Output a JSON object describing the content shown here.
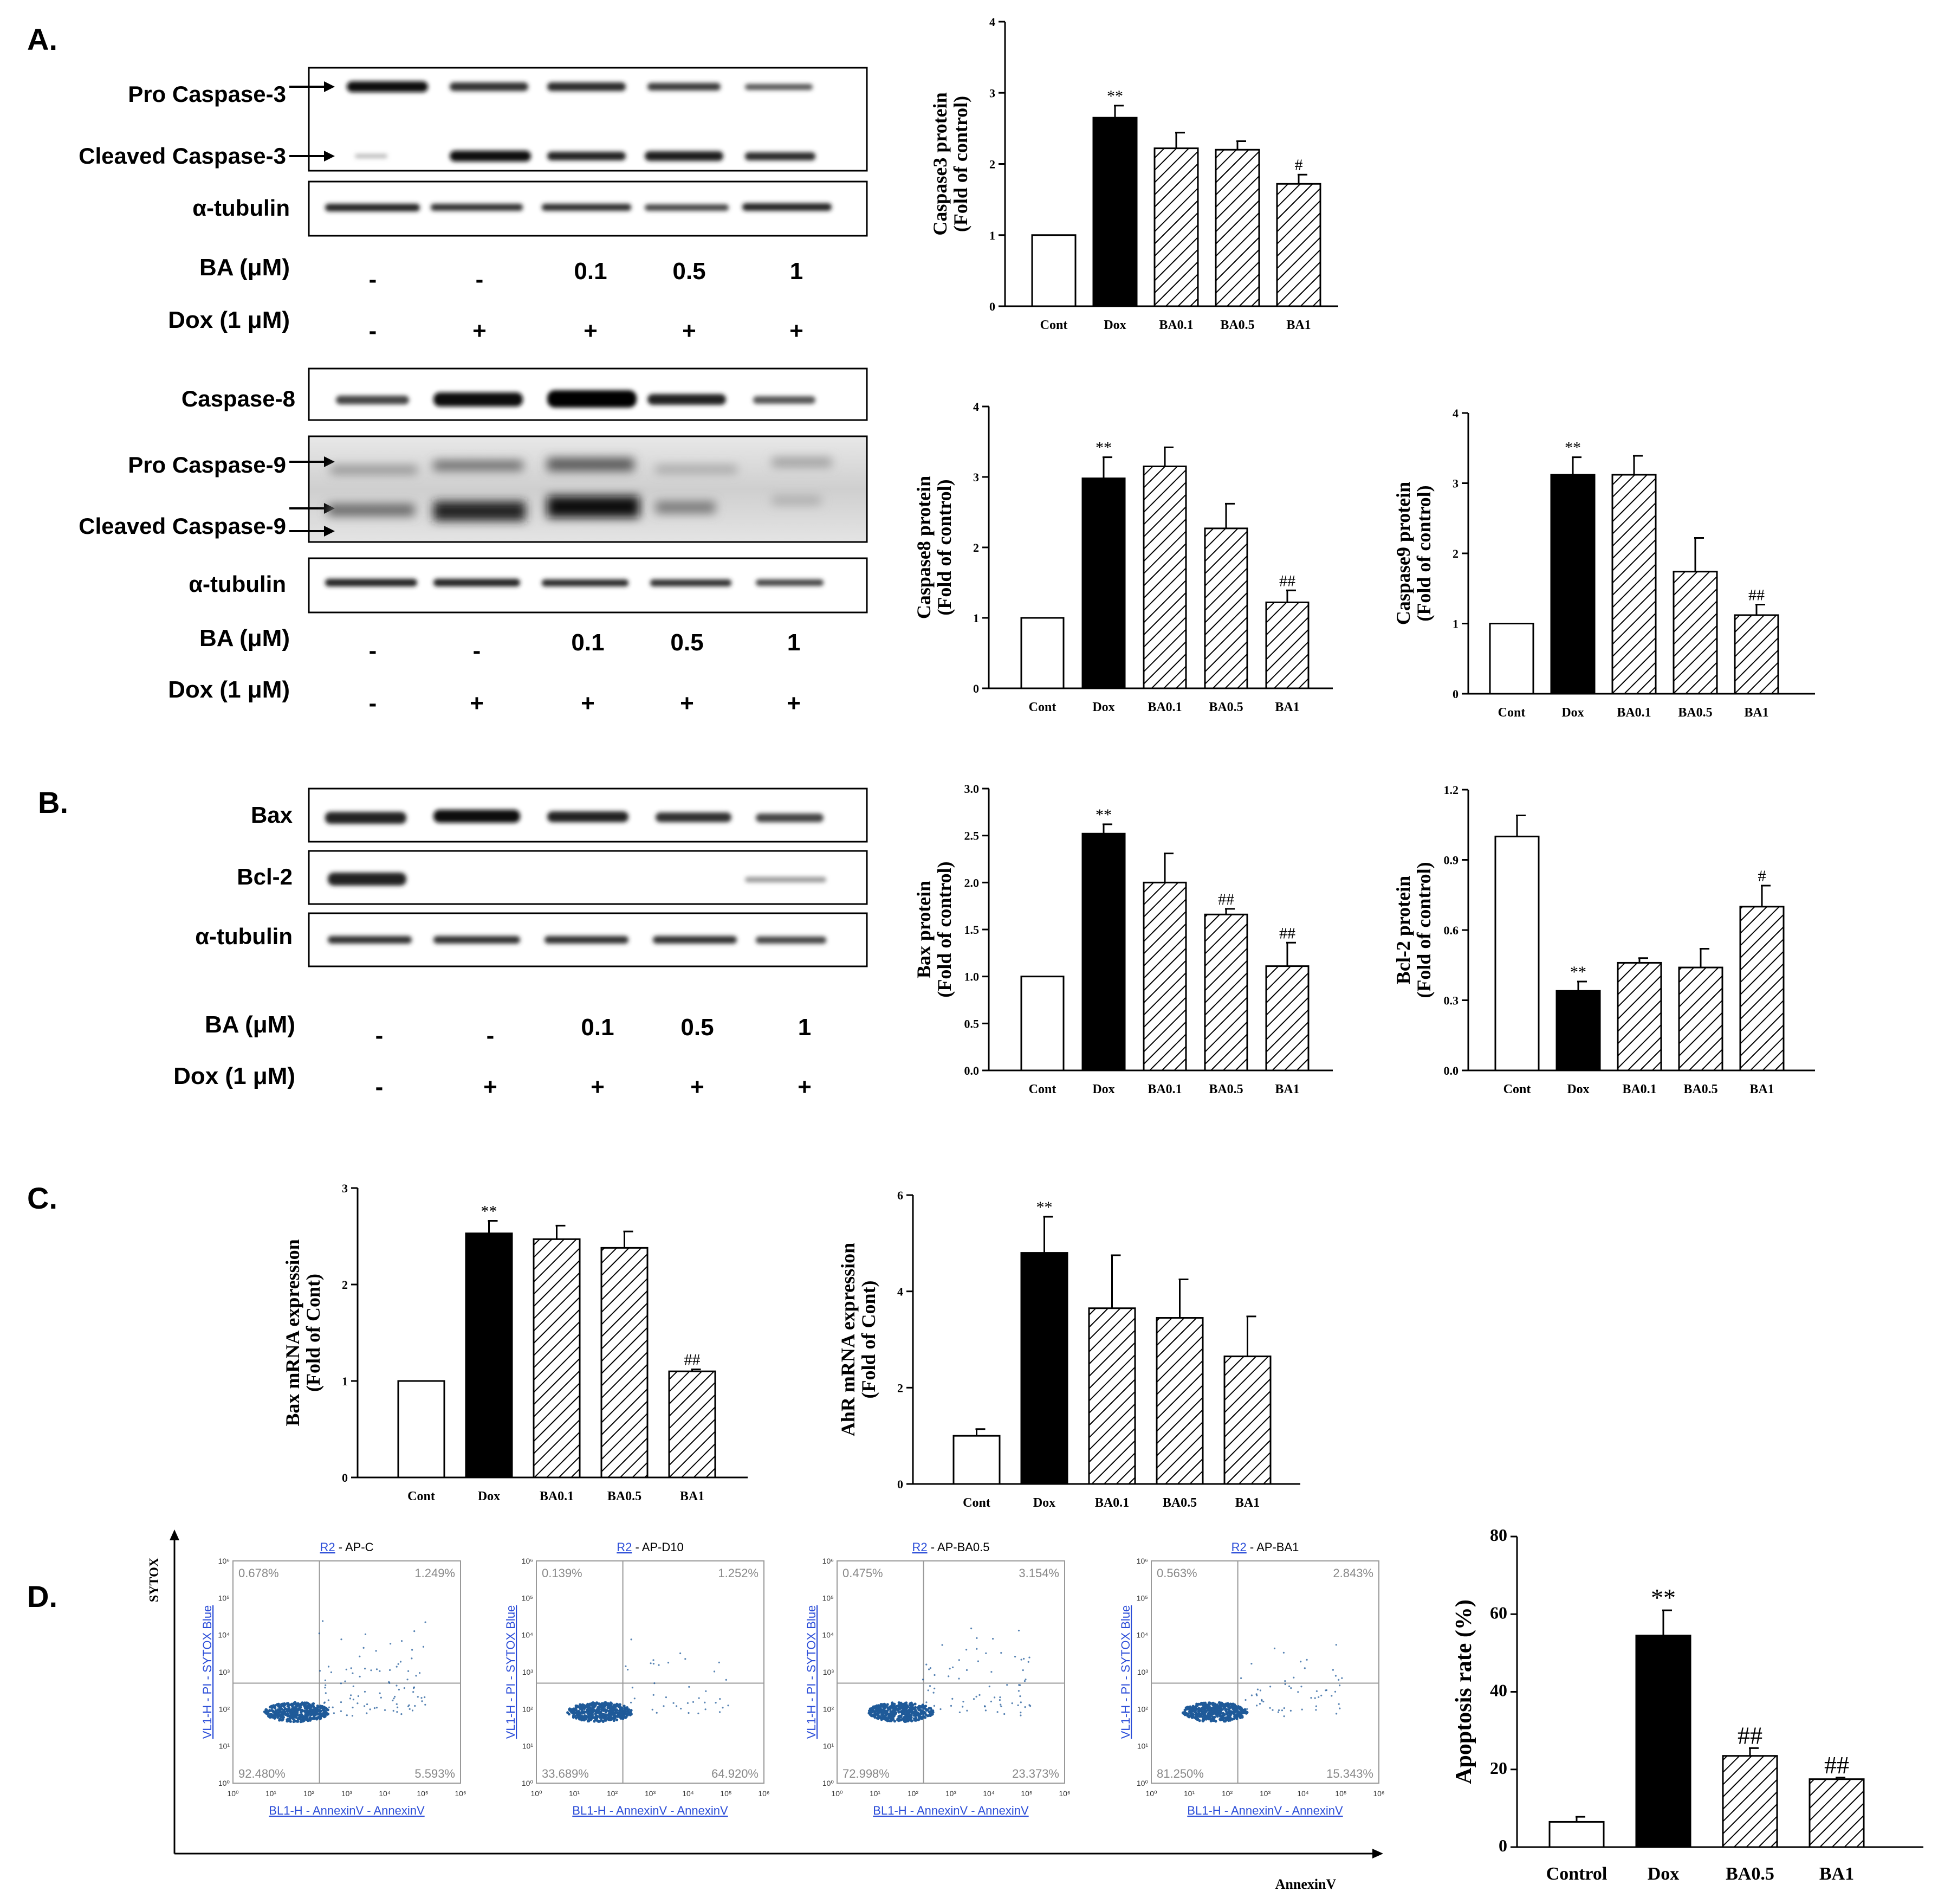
{
  "panels": {
    "a": "A.",
    "b": "B.",
    "c": "C.",
    "d": "D."
  },
  "blots": {
    "a1": {
      "labels": [
        "Pro Caspase-3",
        "Cleaved Caspase-3",
        "α-tubulin"
      ]
    },
    "a2": {
      "labels": [
        "Caspase-8",
        "Pro Caspase-9",
        "Cleaved Caspase-9",
        "α-tubulin"
      ]
    },
    "b": {
      "labels": [
        "Bax",
        "Bcl-2",
        "α-tubulin"
      ]
    }
  },
  "treatments": {
    "ba_label": "BA (μM)",
    "dox_label": "Dox (1 μM)",
    "ba": [
      "-",
      "-",
      "0.1",
      "0.5",
      "1"
    ],
    "dox": [
      "-",
      "+",
      "+",
      "+",
      "+"
    ]
  },
  "flow": {
    "y_axis_label": "SYTOX",
    "x_axis_label": "AnnexinV",
    "axis_x_title": "BL1-H - AnnexinV - AnnexinV",
    "axis_y_title": "VL1-H - PI - SYTOX Blue",
    "tick_labels": [
      "10⁰",
      "10¹",
      "10²",
      "10³",
      "10⁴",
      "10⁵",
      "10⁶"
    ],
    "color": "#1f5a99",
    "plots": [
      {
        "region": "R2",
        "title": " - AP-C",
        "ul": "0.678%",
        "ur": "1.249%",
        "ll": "92.480%",
        "lr": "5.593%"
      },
      {
        "region": "R2",
        "title": " - AP-D10",
        "ul": "0.139%",
        "ur": "1.252%",
        "ll": "33.689%",
        "lr": "64.920%"
      },
      {
        "region": "R2",
        "title": " - AP-BA0.5",
        "ul": "0.475%",
        "ur": "3.154%",
        "ll": "72.998%",
        "lr": "23.373%"
      },
      {
        "region": "R2",
        "title": " - AP-BA1",
        "ul": "0.563%",
        "ur": "2.843%",
        "ll": "81.250%",
        "lr": "15.343%"
      }
    ]
  },
  "chart_data": [
    {
      "id": "caspase3",
      "type": "bar",
      "ylabel": [
        "Caspase3 protein",
        "(Fold of control)"
      ],
      "categories": [
        "Cont",
        "Dox",
        "BA0.1",
        "BA0.5",
        "BA1"
      ],
      "values": [
        1.0,
        2.65,
        2.22,
        2.2,
        1.72
      ],
      "errors": [
        0,
        0.17,
        0.22,
        0.12,
        0.13
      ],
      "sig": [
        "",
        "**",
        "",
        "",
        "#"
      ],
      "ylim": [
        0,
        4
      ],
      "ticks": [
        "0",
        "1",
        "2",
        "3",
        "4"
      ]
    },
    {
      "id": "caspase8",
      "type": "bar",
      "ylabel": [
        "Caspase8 protein",
        "(Fold of control)"
      ],
      "categories": [
        "Cont",
        "Dox",
        "BA0.1",
        "BA0.5",
        "BA1"
      ],
      "values": [
        1.0,
        2.98,
        3.15,
        2.27,
        1.22
      ],
      "errors": [
        0,
        0.3,
        0.27,
        0.35,
        0.17
      ],
      "sig": [
        "",
        "**",
        "",
        "",
        "##"
      ],
      "ylim": [
        0,
        4
      ],
      "ticks": [
        "0",
        "1",
        "2",
        "3",
        "4"
      ]
    },
    {
      "id": "caspase9",
      "type": "bar",
      "ylabel": [
        "Caspase9 protein",
        "(Fold of control)"
      ],
      "categories": [
        "Cont",
        "Dox",
        "BA0.1",
        "BA0.5",
        "BA1"
      ],
      "values": [
        1.0,
        3.12,
        3.12,
        1.74,
        1.12
      ],
      "errors": [
        0,
        0.25,
        0.27,
        0.48,
        0.15
      ],
      "sig": [
        "",
        "**",
        "",
        "",
        "##"
      ],
      "ylim": [
        0,
        4
      ],
      "ticks": [
        "0",
        "1",
        "2",
        "3",
        "4"
      ]
    },
    {
      "id": "bax_protein",
      "type": "bar",
      "ylabel": [
        "Bax protein",
        "(Fold of control)"
      ],
      "categories": [
        "Cont",
        "Dox",
        "BA0.1",
        "BA0.5",
        "BA1"
      ],
      "values": [
        1.0,
        2.52,
        2.0,
        1.66,
        1.11
      ],
      "errors": [
        0,
        0.1,
        0.31,
        0.06,
        0.25
      ],
      "sig": [
        "",
        "**",
        "",
        "##",
        "##"
      ],
      "ylim": [
        0,
        3.0
      ],
      "ticks": [
        "0.0",
        "0.5",
        "1.0",
        "1.5",
        "2.0",
        "2.5",
        "3.0"
      ]
    },
    {
      "id": "bcl2_protein",
      "type": "bar",
      "ylabel": [
        "Bcl-2 protein",
        "(Fold of control)"
      ],
      "categories": [
        "Cont",
        "Dox",
        "BA0.1",
        "BA0.5",
        "BA1"
      ],
      "values": [
        1.0,
        0.34,
        0.46,
        0.44,
        0.7
      ],
      "errors": [
        0.09,
        0.04,
        0.02,
        0.08,
        0.09
      ],
      "sig": [
        "",
        "**",
        "",
        "",
        "#"
      ],
      "ylim": [
        0,
        1.2
      ],
      "ticks": [
        "0.0",
        "0.3",
        "0.6",
        "0.9",
        "1.2"
      ]
    },
    {
      "id": "bax_mrna",
      "type": "bar",
      "ylabel": [
        "Bax mRNA expression",
        "(Fold of Cont)"
      ],
      "categories": [
        "Cont",
        "Dox",
        "BA0.1",
        "BA0.5",
        "BA1"
      ],
      "values": [
        1.0,
        2.53,
        2.47,
        2.38,
        1.1
      ],
      "errors": [
        0,
        0.13,
        0.14,
        0.17,
        0.02
      ],
      "sig": [
        "",
        "**",
        "",
        "",
        "##"
      ],
      "ylim": [
        0,
        3
      ],
      "ticks": [
        "0",
        "1",
        "2",
        "3"
      ]
    },
    {
      "id": "ahr_mrna",
      "type": "bar",
      "ylabel": [
        "AhR mRNA expression",
        "(Fold of Cont)"
      ],
      "categories": [
        "Cont",
        "Dox",
        "BA0.1",
        "BA0.5",
        "BA1"
      ],
      "values": [
        1.0,
        4.8,
        3.65,
        3.45,
        2.65
      ],
      "errors": [
        0.14,
        0.75,
        1.1,
        0.8,
        0.83
      ],
      "sig": [
        "",
        "**",
        "",
        "",
        ""
      ],
      "ylim": [
        0,
        6
      ],
      "ticks": [
        "0",
        "2",
        "4",
        "6"
      ]
    },
    {
      "id": "apoptosis",
      "type": "bar",
      "ylabel": [
        "Apoptosis rate (%)"
      ],
      "categories": [
        "Control",
        "Dox",
        "BA0.5",
        "BA1"
      ],
      "values": [
        6.5,
        54.5,
        23.5,
        17.5
      ],
      "errors": [
        1.3,
        6.5,
        2.0,
        0.4
      ],
      "sig": [
        "",
        "**",
        "##",
        "##"
      ],
      "ylim": [
        0,
        80
      ],
      "ticks": [
        "0",
        "20",
        "40",
        "60",
        "80"
      ]
    }
  ]
}
